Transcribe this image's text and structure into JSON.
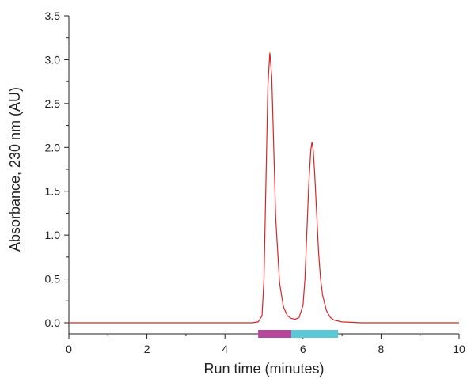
{
  "chart_data": {
    "type": "line",
    "title": "",
    "xlabel": "Run time (minutes)",
    "ylabel": "Absorbance, 230 nm (AU)",
    "xlim": [
      0,
      10
    ],
    "ylim": [
      0,
      3.5
    ],
    "x_ticks": [
      "0",
      "2",
      "4",
      "6",
      "8",
      "10"
    ],
    "y_ticks": [
      "0.0",
      "0.5",
      "1.0",
      "1.5",
      "2.0",
      "2.5",
      "3.0",
      "3.5"
    ],
    "grid": false,
    "series": [
      {
        "color": "#d62728",
        "x": [
          0,
          1,
          2,
          3,
          3.5,
          4,
          4.4,
          4.7,
          4.85,
          4.95,
          5.0,
          5.05,
          5.1,
          5.15,
          5.2,
          5.25,
          5.3,
          5.4,
          5.5,
          5.6,
          5.7,
          5.8,
          5.9,
          6.0,
          6.05,
          6.1,
          6.15,
          6.2,
          6.23,
          6.26,
          6.3,
          6.35,
          6.4,
          6.45,
          6.5,
          6.6,
          6.7,
          6.8,
          7.0,
          7.5,
          8,
          9,
          10
        ],
        "y": [
          0.0,
          0.0,
          0.0,
          0.0,
          0.0,
          0.0,
          0.0,
          0.0,
          0.01,
          0.08,
          0.5,
          1.6,
          2.7,
          3.08,
          2.8,
          2.0,
          1.2,
          0.45,
          0.18,
          0.08,
          0.05,
          0.04,
          0.06,
          0.2,
          0.5,
          1.05,
          1.6,
          1.97,
          2.06,
          1.98,
          1.7,
          1.25,
          0.8,
          0.5,
          0.32,
          0.14,
          0.06,
          0.03,
          0.01,
          0.0,
          0.0,
          0.0,
          0.0
        ]
      }
    ],
    "fraction_bars": [
      {
        "x_start": 4.85,
        "x_end": 5.7,
        "color": "#b5489b"
      },
      {
        "x_start": 5.7,
        "x_end": 6.9,
        "color": "#5bc8d6"
      }
    ]
  }
}
